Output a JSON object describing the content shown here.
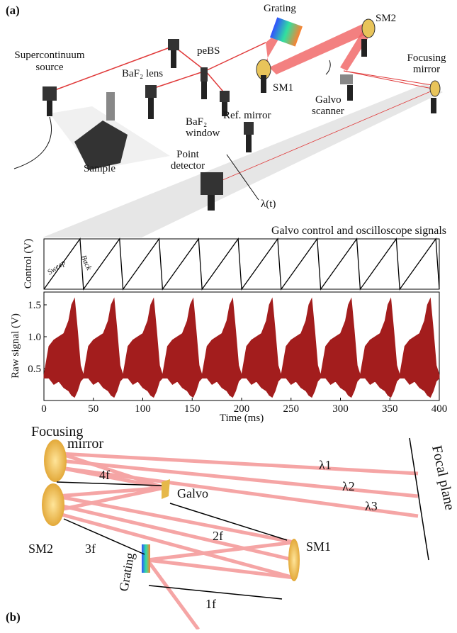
{
  "panel_a": {
    "label": "(a)",
    "labels": {
      "supercontinuum": [
        "Supercontinuum",
        "source"
      ],
      "baf2_lens": "BaF₂ lens",
      "pebs": "peBS",
      "grating": "Grating",
      "sm2": "SM2",
      "sm1": "SM1",
      "galvo": [
        "Galvo",
        "scanner"
      ],
      "focusing": [
        "Focusing",
        "mirror"
      ],
      "sample": "Sample",
      "baf2_window": [
        "BaF₂",
        "window"
      ],
      "ref_mirror": "Ref. mirror",
      "detector": [
        "Point",
        "detector"
      ],
      "lambda_t": "λ(t)"
    }
  },
  "chart_data": [
    {
      "type": "line",
      "title": "Galvo control and oscilloscope signals",
      "ylabel": "Control (V)",
      "color": "#000000",
      "annotations": [
        "Sweep",
        "Back"
      ],
      "x": [
        0,
        36.5,
        40,
        76.5,
        80,
        116.5,
        120,
        156.5,
        160,
        196.5,
        200,
        236.5,
        240,
        276.5,
        280,
        316.5,
        320,
        356.5,
        360,
        396.5,
        400
      ],
      "values": [
        0,
        1,
        0,
        1,
        0,
        1,
        0,
        1,
        0,
        1,
        0,
        1,
        0,
        1,
        0,
        1,
        0,
        1,
        0,
        1,
        0
      ],
      "xlim": [
        0,
        400
      ],
      "ylim": [
        0,
        1
      ]
    },
    {
      "type": "band",
      "ylabel": "Raw signal (V)",
      "xlabel": "Time (ms)",
      "color": "#a31d1d",
      "x": [
        0,
        5,
        10,
        15,
        20,
        25,
        28,
        31,
        34,
        37,
        40,
        45,
        50,
        55,
        60,
        65,
        68,
        71,
        74,
        77,
        80,
        85,
        90,
        95,
        100,
        105,
        108,
        111,
        114,
        117,
        120,
        125,
        130,
        135,
        140,
        145,
        148,
        151,
        154,
        157,
        160,
        165,
        170,
        175,
        180,
        185,
        188,
        191,
        194,
        197,
        200,
        205,
        210,
        215,
        220,
        225,
        228,
        231,
        234,
        237,
        240,
        245,
        250,
        255,
        260,
        265,
        268,
        271,
        274,
        277,
        280,
        285,
        290,
        295,
        300,
        305,
        308,
        311,
        314,
        317,
        320,
        325,
        330,
        335,
        340,
        345,
        348,
        351,
        354,
        357,
        360,
        365,
        370,
        375,
        380,
        385,
        388,
        391,
        394,
        397,
        400
      ],
      "upper": [
        0.4,
        0.85,
        0.95,
        1.0,
        1.05,
        1.25,
        1.5,
        1.6,
        1.1,
        0.55,
        0.4,
        0.85,
        0.95,
        1.0,
        1.05,
        1.25,
        1.5,
        1.6,
        1.1,
        0.55,
        0.4,
        0.85,
        0.95,
        1.0,
        1.05,
        1.25,
        1.5,
        1.6,
        1.1,
        0.55,
        0.4,
        0.85,
        0.95,
        1.0,
        1.05,
        1.25,
        1.5,
        1.6,
        1.1,
        0.55,
        0.4,
        0.85,
        0.95,
        1.0,
        1.05,
        1.25,
        1.5,
        1.6,
        1.1,
        0.55,
        0.4,
        0.85,
        0.95,
        1.0,
        1.05,
        1.25,
        1.5,
        1.6,
        1.1,
        0.55,
        0.4,
        0.85,
        0.95,
        1.0,
        1.05,
        1.25,
        1.5,
        1.6,
        1.1,
        0.55,
        0.4,
        0.85,
        0.95,
        1.0,
        1.05,
        1.25,
        1.5,
        1.6,
        1.1,
        0.55,
        0.4,
        0.85,
        0.95,
        1.0,
        1.05,
        1.25,
        1.5,
        1.6,
        1.1,
        0.55,
        0.4,
        0.85,
        0.95,
        1.0,
        1.05,
        1.25,
        1.5,
        1.6,
        1.1,
        0.55,
        0.4
      ],
      "lower": [
        0.35,
        0.35,
        0.25,
        0.3,
        0.2,
        0.15,
        0.08,
        0.05,
        0.15,
        0.3,
        0.35,
        0.35,
        0.25,
        0.3,
        0.2,
        0.15,
        0.08,
        0.05,
        0.15,
        0.3,
        0.35,
        0.35,
        0.25,
        0.3,
        0.2,
        0.15,
        0.08,
        0.05,
        0.15,
        0.3,
        0.35,
        0.35,
        0.25,
        0.3,
        0.2,
        0.15,
        0.08,
        0.05,
        0.15,
        0.3,
        0.35,
        0.35,
        0.25,
        0.3,
        0.2,
        0.15,
        0.08,
        0.05,
        0.15,
        0.3,
        0.35,
        0.35,
        0.25,
        0.3,
        0.2,
        0.15,
        0.08,
        0.05,
        0.15,
        0.3,
        0.35,
        0.35,
        0.25,
        0.3,
        0.2,
        0.15,
        0.08,
        0.05,
        0.15,
        0.3,
        0.35,
        0.35,
        0.25,
        0.3,
        0.2,
        0.15,
        0.08,
        0.05,
        0.15,
        0.3,
        0.35,
        0.35,
        0.25,
        0.3,
        0.2,
        0.15,
        0.08,
        0.05,
        0.15,
        0.3,
        0.35,
        0.35,
        0.25,
        0.3,
        0.2,
        0.15,
        0.08,
        0.05,
        0.15,
        0.3,
        0.35
      ],
      "xlim": [
        0,
        400
      ],
      "ylim": [
        0,
        1.7
      ],
      "xticks": [
        0,
        50,
        100,
        150,
        200,
        250,
        300,
        350,
        400
      ],
      "yticks": [
        0.5,
        {
          "value": 1,
          "label": "1.0"
        },
        1.5
      ]
    }
  ],
  "panel_b": {
    "label": "(b)",
    "labels": {
      "focusing": [
        "Focusing",
        "mirror"
      ],
      "l1": "λ1",
      "l2": "λ2",
      "l3": "λ3",
      "focal_plane": "Focal plane",
      "f4": "4f",
      "galvo": "Galvo",
      "f2": "2f",
      "sm1": "SM1",
      "sm2": "SM2",
      "f3": "3f",
      "grating": "Grating",
      "f1": "1f"
    }
  }
}
